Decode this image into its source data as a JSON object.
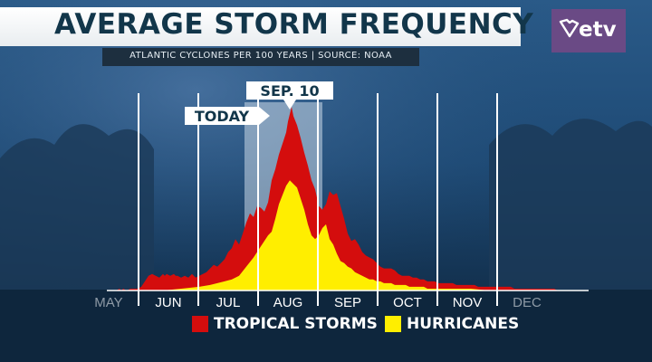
{
  "header": {
    "title": "AVERAGE STORM FREQUENCY",
    "subtitle": "ATLANTIC CYCLONES PER 100 YEARS | SOURCE: NOAA",
    "logo_text": "etv"
  },
  "colors": {
    "tropical": "#d40d0d",
    "hurricane": "#ffee00",
    "title_text": "#12364a",
    "logo_bg": "#6a4a85"
  },
  "chart_data": {
    "type": "area",
    "title": "AVERAGE STORM FREQUENCY",
    "subtitle": "ATLANTIC CYCLONES PER 100 YEARS | SOURCE: NOAA",
    "x_labels": [
      "MAY",
      "JUN",
      "JUL",
      "AUG",
      "SEP",
      "OCT",
      "NOV",
      "DEC"
    ],
    "y_axis": "none",
    "ylim": [
      0,
      100
    ],
    "series": [
      {
        "name": "TROPICAL STORMS",
        "color": "#d40d0d",
        "x": [
          0,
          4,
          6,
          7,
          8,
          10,
          12,
          14,
          16,
          18,
          20,
          22,
          24,
          26,
          28,
          30,
          31,
          32,
          34,
          36,
          37,
          38,
          40,
          42,
          44,
          46,
          48,
          50,
          52,
          54,
          56,
          58,
          60,
          62,
          64,
          66,
          68,
          70,
          72,
          74,
          76,
          78,
          80,
          82,
          84,
          86,
          88,
          90,
          92,
          94,
          96,
          98,
          99,
          100,
          101,
          102,
          104,
          106,
          108,
          110,
          112,
          114,
          116,
          118,
          120,
          122,
          124,
          126,
          128,
          130,
          132,
          134,
          136,
          138,
          140,
          142,
          144,
          146,
          148,
          150,
          152,
          154,
          156,
          158,
          160,
          162,
          164,
          166,
          168,
          170,
          172,
          174,
          176,
          178,
          180,
          182,
          184,
          186,
          188,
          190,
          192,
          194,
          196,
          198,
          200,
          202,
          204,
          206,
          208,
          210,
          212,
          214,
          216,
          218,
          220,
          222,
          224,
          226,
          228,
          230,
          232,
          234,
          236,
          238,
          240,
          242,
          244,
          246,
          248,
          250,
          252,
          254,
          256,
          258,
          260,
          262,
          264
        ],
        "values": [
          0,
          0,
          1,
          0,
          1,
          0,
          1,
          1,
          1,
          2,
          5,
          8,
          9,
          8,
          7,
          9,
          8,
          9,
          8,
          9,
          8,
          8,
          7,
          8,
          7,
          9,
          7,
          8,
          9,
          10,
          12,
          14,
          13,
          15,
          17,
          21,
          23,
          28,
          25,
          31,
          37,
          42,
          40,
          46,
          45,
          43,
          48,
          60,
          66,
          74,
          80,
          86,
          92,
          96,
          100,
          95,
          90,
          83,
          75,
          68,
          60,
          55,
          46,
          44,
          47,
          54,
          52,
          53,
          46,
          39,
          31,
          27,
          28,
          25,
          21,
          19,
          18,
          17,
          15,
          13,
          12,
          12,
          12,
          11,
          9,
          8,
          8,
          8,
          7,
          7,
          6,
          6,
          5,
          5,
          5,
          4,
          4,
          4,
          4,
          4,
          3,
          3,
          3,
          3,
          3,
          3,
          2,
          2,
          2,
          2,
          2,
          2,
          2,
          2,
          2,
          2,
          1,
          1,
          1,
          1,
          1,
          1,
          1,
          1,
          1,
          1,
          1,
          1,
          0,
          0,
          0,
          0,
          0,
          0,
          0,
          0,
          0
        ]
      },
      {
        "name": "HURRICANES",
        "color": "#ffee00",
        "x": [
          0,
          10,
          20,
          30,
          40,
          50,
          56,
          60,
          64,
          68,
          72,
          76,
          80,
          84,
          88,
          90,
          92,
          94,
          96,
          98,
          100,
          102,
          104,
          106,
          108,
          110,
          112,
          114,
          116,
          118,
          120,
          122,
          124,
          126,
          128,
          130,
          132,
          134,
          136,
          138,
          140,
          142,
          144,
          146,
          148,
          150,
          152,
          154,
          156,
          158,
          160,
          162,
          164,
          166,
          168,
          170,
          172,
          174,
          176,
          178,
          180,
          184,
          188,
          192,
          196,
          200,
          210,
          220,
          230,
          240,
          250,
          264
        ],
        "values": [
          0,
          0,
          0,
          0,
          1,
          2,
          3,
          4,
          5,
          6,
          8,
          13,
          18,
          24,
          30,
          32,
          39,
          47,
          52,
          57,
          60,
          58,
          56,
          50,
          44,
          36,
          30,
          28,
          30,
          34,
          36,
          28,
          25,
          20,
          16,
          15,
          13,
          12,
          10,
          9,
          8,
          7,
          6,
          6,
          5,
          5,
          4,
          4,
          4,
          3,
          3,
          3,
          3,
          2,
          2,
          2,
          2,
          2,
          1,
          1,
          1,
          1,
          1,
          1,
          1,
          1,
          0,
          0,
          0,
          0,
          0,
          0
        ]
      }
    ],
    "annotations": [
      {
        "label": "SEP. 10",
        "x": 100
      },
      {
        "label": "TODAY",
        "x": 90
      }
    ],
    "legend": "bottom-center",
    "grid": "vertical month lines"
  }
}
